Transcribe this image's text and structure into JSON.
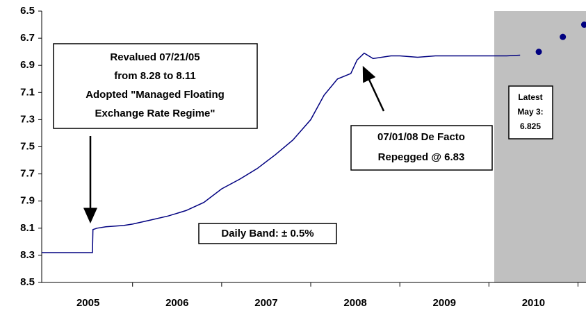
{
  "chart_data": {
    "type": "line",
    "ylim": [
      6.5,
      8.5
    ],
    "y_inverted": true,
    "yticks": [
      6.5,
      6.7,
      6.9,
      7.1,
      7.3,
      7.5,
      7.7,
      7.9,
      8.1,
      8.3,
      8.5
    ],
    "xlim": [
      2004.98,
      2011.09
    ],
    "xticks": [
      {
        "value": 2005.5,
        "label": "2005"
      },
      {
        "value": 2006.5,
        "label": "2006"
      },
      {
        "value": 2007.5,
        "label": "2007"
      },
      {
        "value": 2008.5,
        "label": "2008"
      },
      {
        "value": 2009.5,
        "label": "2009"
      },
      {
        "value": 2010.5,
        "label": "2010"
      }
    ],
    "grid": false,
    "shaded_region": {
      "x": [
        2010.06,
        2011.09
      ],
      "color": "#c0c0c0"
    },
    "series": [
      {
        "kind": "line",
        "color": "#000080",
        "x": [
          2004.98,
          2005.55,
          2005.555,
          2005.6,
          2005.7,
          2005.9,
          2006.0,
          2006.2,
          2006.4,
          2006.6,
          2006.8,
          2007.0,
          2007.2,
          2007.4,
          2007.6,
          2007.8,
          2008.0,
          2008.15,
          2008.3,
          2008.45,
          2008.52,
          2008.6,
          2008.7,
          2008.9,
          2009.0,
          2009.2,
          2009.4,
          2009.6,
          2009.8,
          2010.0,
          2010.2,
          2010.35
        ],
        "values": [
          8.28,
          8.28,
          8.11,
          8.1,
          8.09,
          8.08,
          8.07,
          8.04,
          8.01,
          7.97,
          7.91,
          7.81,
          7.74,
          7.66,
          7.56,
          7.45,
          7.3,
          7.12,
          7.0,
          6.96,
          6.86,
          6.81,
          6.85,
          6.83,
          6.83,
          6.84,
          6.83,
          6.83,
          6.83,
          6.83,
          6.83,
          6.825
        ]
      },
      {
        "kind": "dots",
        "color": "#000080",
        "x": [
          2010.56,
          2010.83,
          2011.07
        ],
        "values": [
          6.8,
          6.69,
          6.6
        ]
      }
    ],
    "annotations": [
      {
        "lines": [
          "Revalued 07/21/05",
          "from 8.28 to 8.11",
          "Adopted \"Managed Floating",
          "Exchange Rate Regime\""
        ]
      },
      {
        "lines": [
          "07/01/08 De Facto",
          "Repegged @ 6.83"
        ]
      },
      {
        "lines": [
          "Daily Band: ± 0.5%"
        ]
      },
      {
        "lines": [
          "Latest",
          "May 3:",
          "6.825"
        ]
      }
    ]
  }
}
